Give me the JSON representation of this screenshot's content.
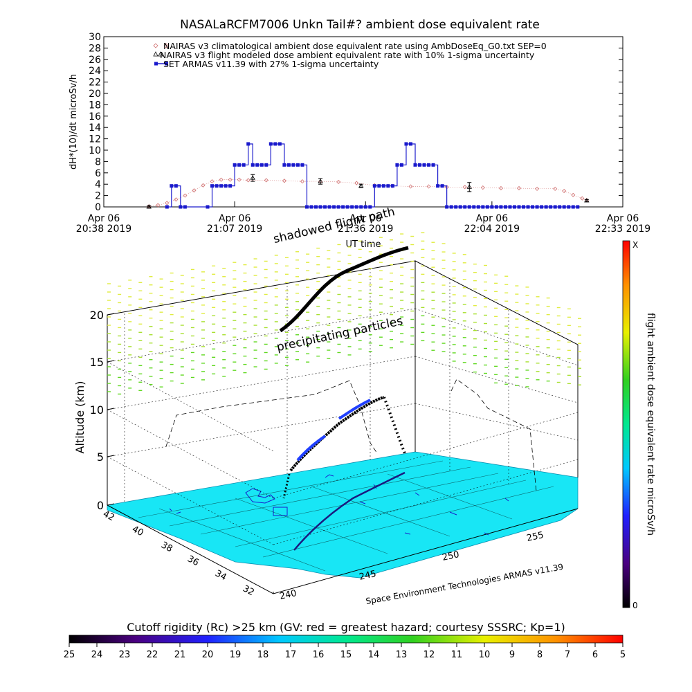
{
  "page_title": "NASALaRCFM7006  Unkn Tail#? ambient dose equivalent rate",
  "chart_data": [
    {
      "type": "line",
      "title": "NASALaRCFM7006  Unkn Tail#? ambient dose equivalent rate",
      "ylabel": "dH*(10)/dt microSv/h",
      "xlabel": "UT time",
      "ylim": [
        0,
        30
      ],
      "xlim_minutes": [
        0,
        115
      ],
      "yticks": [
        0,
        2,
        4,
        6,
        8,
        10,
        12,
        14,
        16,
        18,
        20,
        22,
        24,
        26,
        28,
        30
      ],
      "xticks": [
        {
          "m": 0,
          "line1": "Apr 06",
          "line2": "20:38 2019"
        },
        {
          "m": 29,
          "line1": "Apr 06",
          "line2": "21:07 2019"
        },
        {
          "m": 58,
          "line1": "Apr 06",
          "line2": "21:36 2019"
        },
        {
          "m": 86,
          "line1": "Apr 06",
          "line2": "22:04 2019"
        },
        {
          "m": 115,
          "line1": "Apr 06",
          "line2": "22:33 2019"
        }
      ],
      "legend": [
        "NAIRAS v3 climatological ambient dose equivalent rate using AmbDoseEq_G0.txt SEP=0",
        "NAIRAS v3 flight modeled dose ambient equivalent rate with 10% 1-sigma uncertainty",
        "SET ARMAS v11.39 with 27% 1-sigma uncertainty"
      ],
      "series": [
        {
          "name": "NAIRAS v3 climatological ambient dose equivalent rate using AmbDoseEq_G0.txt SEP=0",
          "color": "#d07070",
          "x": [
            10,
            12,
            14,
            16,
            18,
            20,
            22,
            24,
            26,
            28,
            30,
            32,
            36,
            40,
            44,
            48,
            52,
            56,
            60,
            64,
            68,
            72,
            76,
            80,
            84,
            88,
            92,
            96,
            100,
            102,
            104,
            106,
            107
          ],
          "y": [
            0.1,
            0.3,
            0.7,
            1.3,
            2.0,
            2.9,
            3.8,
            4.5,
            4.8,
            4.8,
            4.8,
            4.7,
            4.7,
            4.6,
            4.5,
            4.5,
            4.4,
            4.2,
            3.8,
            3.7,
            3.6,
            3.6,
            3.5,
            3.5,
            3.4,
            3.3,
            3.3,
            3.2,
            3.2,
            2.8,
            2.1,
            1.5,
            1.2
          ]
        },
        {
          "name": "NAIRAS v3 flight modeled dose ambient equivalent rate with 10% 1-sigma uncertainty",
          "color": "#000000",
          "x": [
            10,
            33,
            48,
            57,
            81,
            107
          ],
          "y": [
            0.0,
            5.1,
            4.5,
            3.7,
            3.5,
            1.1
          ],
          "err": [
            0.2,
            0.6,
            0.5,
            0.3,
            0.8,
            0.2
          ]
        },
        {
          "name": "SET ARMAS v11.39 with 27% 1-sigma uncertainty",
          "color": "#1a1acc",
          "x": [
            14,
            15,
            16,
            17,
            18,
            23,
            24,
            25,
            26,
            27,
            28,
            29,
            30,
            31,
            32,
            33,
            34,
            35,
            36,
            37,
            38,
            39,
            40,
            41,
            42,
            43,
            44,
            45,
            46,
            47,
            48,
            49,
            50,
            51,
            52,
            53,
            54,
            55,
            56,
            57,
            58,
            59,
            60,
            61,
            62,
            63,
            64,
            65,
            66,
            67,
            68,
            69,
            70,
            71,
            72,
            73,
            74,
            75,
            76,
            77,
            78,
            79,
            80,
            81,
            82,
            83,
            84,
            85,
            86,
            87,
            88,
            89,
            90,
            91,
            92,
            93,
            94,
            95,
            96,
            97,
            98,
            99,
            100,
            101,
            102,
            103,
            104,
            105
          ],
          "y": [
            0,
            3.7,
            3.7,
            0,
            0,
            0,
            3.7,
            3.7,
            3.7,
            3.7,
            3.7,
            7.4,
            7.4,
            7.4,
            11.1,
            7.4,
            7.4,
            7.4,
            7.4,
            11.1,
            11.1,
            11.1,
            7.4,
            7.4,
            7.4,
            7.4,
            7.4,
            0,
            0,
            0,
            0,
            0,
            0,
            0,
            0,
            0,
            0,
            0,
            0,
            0,
            0,
            0,
            3.7,
            3.7,
            3.7,
            3.7,
            3.7,
            7.4,
            7.4,
            11.1,
            11.1,
            7.4,
            7.4,
            7.4,
            7.4,
            7.4,
            3.7,
            3.7,
            0,
            0,
            0,
            0,
            0,
            0,
            0,
            0,
            0,
            0,
            0,
            0,
            0,
            0,
            0,
            0,
            0,
            0,
            0,
            0,
            0,
            0,
            0,
            0,
            0,
            0,
            0,
            0,
            0,
            0
          ]
        }
      ]
    },
    {
      "type": "other",
      "subtype": "3d-flight-path",
      "ylabel": "Altitude (km)",
      "zticks": [
        0,
        5,
        10,
        15,
        20
      ],
      "lat_ticks": [
        32,
        34,
        36,
        38,
        40,
        42
      ],
      "lon_ticks": [
        240,
        245,
        250,
        255
      ],
      "annotations": [
        "shadowed flight path",
        "precipitating particles"
      ],
      "credit": "Space Environment Technologies ARMAS v11.39",
      "colorbar_label": "flight ambient dose equivalent rate microSv/h",
      "colorbar_top": "X",
      "colorbar_bottom": "0"
    },
    {
      "type": "heatmap",
      "subtype": "colorbar",
      "title": "Cutoff rigidity (Rc) >25 km (GV: red = greatest hazard; courtesy SSSRC; Kp=1)",
      "ticks": [
        "25",
        "24",
        "23",
        "22",
        "21",
        "20",
        "19",
        "18",
        "17",
        "16",
        "15",
        "14",
        "13",
        "12",
        "11",
        "10",
        "9",
        "8",
        "7",
        "6",
        "5"
      ]
    }
  ]
}
